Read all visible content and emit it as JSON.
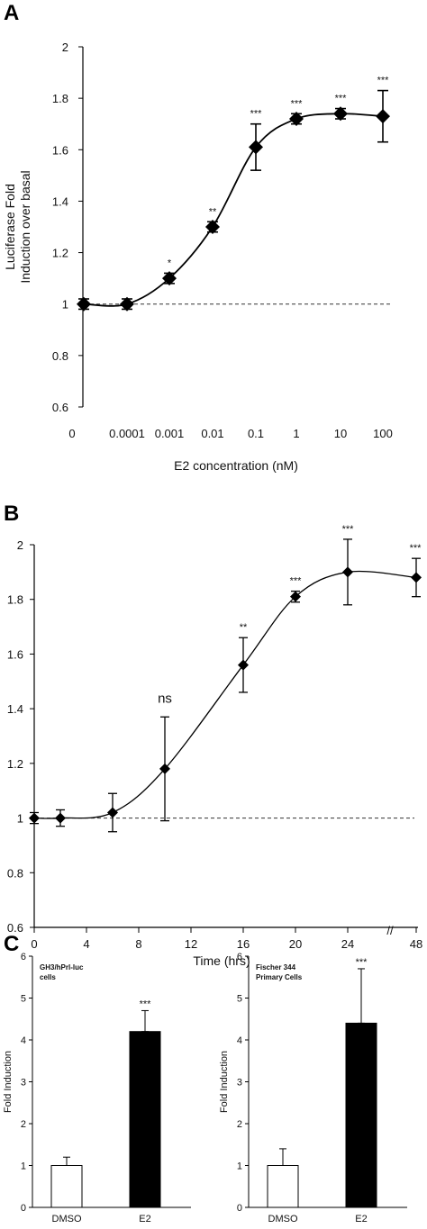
{
  "panels": {
    "a": "A",
    "b": "B",
    "c": "C"
  },
  "chart_data": [
    {
      "type": "line",
      "panel": "A",
      "x_categories": [
        "0",
        "0.0001",
        "0.001",
        "0.01",
        "0.1",
        "1",
        "10",
        "100"
      ],
      "y": [
        1.0,
        1.0,
        1.1,
        1.3,
        1.61,
        1.72,
        1.74,
        1.73
      ],
      "y_err": [
        0.02,
        0.02,
        0.02,
        0.02,
        0.09,
        0.02,
        0.02,
        0.1
      ],
      "significance": [
        "",
        "",
        "*",
        "**",
        "***",
        "***",
        "***",
        "***"
      ],
      "y_ticks": [
        "0.6",
        "0.8",
        "1",
        "1.2",
        "1.4",
        "1.6",
        "1.8",
        "2"
      ],
      "ylim": [
        0.6,
        2.0
      ],
      "baseline": 1.0,
      "xlabel": "E2 concentration (nM)",
      "ylabel_line1": "Luciferase Fold",
      "ylabel_line2": "Induction over basal"
    },
    {
      "type": "line",
      "panel": "B",
      "x": [
        0,
        2,
        6,
        10,
        16,
        20,
        24,
        48
      ],
      "y": [
        1.0,
        1.0,
        1.02,
        1.18,
        1.56,
        1.81,
        1.9,
        1.88
      ],
      "y_err": [
        0.02,
        0.03,
        0.07,
        0.19,
        0.1,
        0.02,
        0.12,
        0.07
      ],
      "significance": [
        "",
        "",
        "",
        "ns",
        "**",
        "***",
        "***",
        "***"
      ],
      "x_ticks": [
        "0",
        "4",
        "8",
        "12",
        "16",
        "20",
        "24",
        "48"
      ],
      "y_ticks": [
        "0.6",
        "0.8",
        "1",
        "1.2",
        "1.4",
        "1.6",
        "1.8",
        "2"
      ],
      "ylim": [
        0.6,
        2.0
      ],
      "baseline": 1.0,
      "axis_break": "//",
      "xlabel": "Time (hrs)"
    },
    {
      "type": "bar",
      "panel": "C-left",
      "annotation_line1": "GH3/hPrl-luc",
      "annotation_line2": "cells",
      "categories": [
        "DMSO",
        "E2"
      ],
      "values": [
        1.0,
        4.2
      ],
      "errors": [
        0.2,
        0.5
      ],
      "fills": [
        "#ffffff",
        "#000000"
      ],
      "significance": [
        "",
        "***"
      ],
      "y_ticks": [
        "0",
        "1",
        "2",
        "3",
        "4",
        "5",
        "6"
      ],
      "ylim": [
        0,
        6
      ],
      "ylabel": "Fold Induction"
    },
    {
      "type": "bar",
      "panel": "C-right",
      "annotation_line1": "Fischer 344",
      "annotation_line2": "Primary Cells",
      "categories": [
        "DMSO",
        "E2"
      ],
      "values": [
        1.0,
        4.4
      ],
      "errors": [
        0.4,
        1.3
      ],
      "fills": [
        "#ffffff",
        "#000000"
      ],
      "significance": [
        "",
        "***"
      ],
      "y_ticks": [
        "0",
        "1",
        "2",
        "3",
        "4",
        "5",
        "6"
      ],
      "ylim": [
        0,
        6
      ],
      "ylabel": "Fold Induction"
    }
  ]
}
